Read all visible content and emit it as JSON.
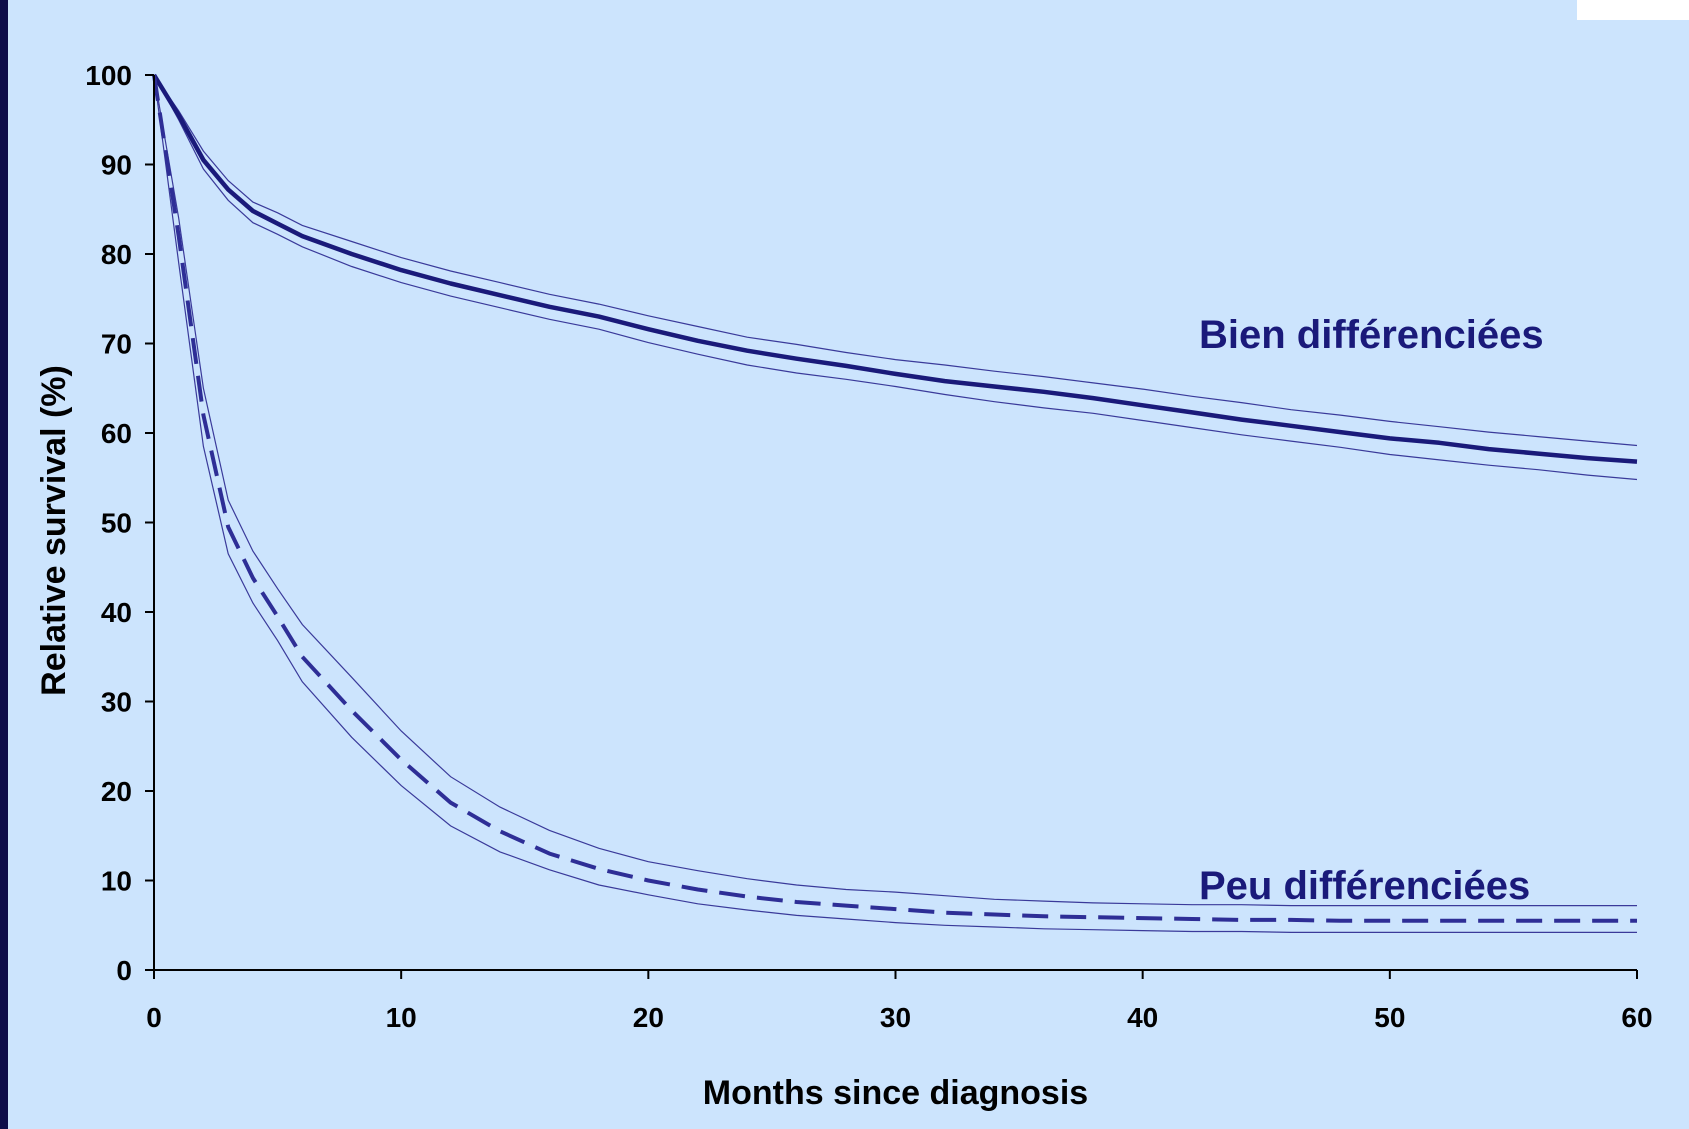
{
  "chart_data": {
    "type": "line",
    "xlabel": "Months since diagnosis",
    "ylabel": "Relative survival (%)",
    "xlim": [
      0,
      60
    ],
    "ylim": [
      0,
      100
    ],
    "xticks": [
      0,
      10,
      20,
      30,
      40,
      50,
      60
    ],
    "yticks": [
      0,
      10,
      20,
      30,
      40,
      50,
      60,
      70,
      80,
      90,
      100
    ],
    "grid": false,
    "colors": {
      "line": "#1a1a7a",
      "dashed": "#2e2e96",
      "ci": "#3a3a9a",
      "background": "#cce4fd"
    },
    "series": [
      {
        "name": "Bien différenciées",
        "style": "solid",
        "x": [
          0,
          1,
          2,
          3,
          4,
          5,
          6,
          8,
          10,
          12,
          14,
          16,
          18,
          20,
          22,
          24,
          26,
          28,
          30,
          32,
          34,
          36,
          38,
          40,
          42,
          44,
          46,
          48,
          50,
          52,
          54,
          56,
          58,
          60
        ],
        "y": [
          100,
          95.5,
          90.5,
          87.2,
          84.8,
          83.4,
          82,
          80,
          78.2,
          76.7,
          75.4,
          74.1,
          73,
          71.6,
          70.3,
          69.2,
          68.3,
          67.5,
          66.6,
          65.8,
          65.2,
          64.6,
          63.9,
          63.1,
          62.3,
          61.5,
          60.8,
          60.1,
          59.4,
          58.9,
          58.2,
          57.7,
          57.2,
          56.8
        ],
        "ci_upper": [
          100,
          96,
          91.5,
          88.2,
          85.8,
          84.6,
          83.2,
          81.4,
          79.6,
          78.1,
          76.8,
          75.5,
          74.4,
          73.1,
          71.9,
          70.7,
          69.9,
          69,
          68.2,
          67.6,
          66.9,
          66.3,
          65.6,
          64.9,
          64.1,
          63.4,
          62.6,
          62,
          61.3,
          60.7,
          60.1,
          59.6,
          59.1,
          58.6
        ],
        "ci_lower": [
          100,
          95,
          89.5,
          86,
          83.5,
          82.2,
          80.8,
          78.6,
          76.8,
          75.3,
          74,
          72.7,
          71.6,
          70.1,
          68.8,
          67.6,
          66.7,
          66,
          65.2,
          64.3,
          63.5,
          62.8,
          62.2,
          61.4,
          60.6,
          59.8,
          59.1,
          58.4,
          57.6,
          57,
          56.4,
          55.9,
          55.3,
          54.8
        ]
      },
      {
        "name": "Peu différenciées",
        "style": "dashed",
        "x": [
          0,
          1,
          2,
          3,
          4,
          5,
          6,
          8,
          10,
          12,
          14,
          16,
          18,
          20,
          22,
          24,
          26,
          28,
          30,
          32,
          34,
          36,
          38,
          40,
          42,
          44,
          46,
          48,
          50,
          52,
          54,
          56,
          58,
          60
        ],
        "y": [
          100,
          82,
          62,
          49.5,
          43.8,
          39.5,
          35,
          29,
          23.5,
          18.7,
          15.5,
          13,
          11.3,
          10,
          9,
          8.2,
          7.6,
          7.2,
          6.8,
          6.4,
          6.2,
          6,
          5.9,
          5.8,
          5.7,
          5.6,
          5.6,
          5.5,
          5.5,
          5.5,
          5.5,
          5.5,
          5.5,
          5.5
        ],
        "ci_upper": [
          100,
          84,
          65,
          52.5,
          46.8,
          42.6,
          38.6,
          32.7,
          26.7,
          21.6,
          18.2,
          15.6,
          13.6,
          12.1,
          11.1,
          10.2,
          9.5,
          9,
          8.7,
          8.3,
          7.9,
          7.7,
          7.5,
          7.4,
          7.3,
          7.3,
          7.2,
          7.2,
          7.2,
          7.2,
          7.2,
          7.2,
          7.2,
          7.2
        ],
        "ci_lower": [
          100,
          79,
          58.5,
          46.5,
          41,
          36.8,
          32.2,
          26,
          20.6,
          16.1,
          13.2,
          11.2,
          9.5,
          8.4,
          7.4,
          6.7,
          6.1,
          5.7,
          5.3,
          5,
          4.8,
          4.6,
          4.5,
          4.4,
          4.3,
          4.3,
          4.2,
          4.2,
          4.2,
          4.2,
          4.2,
          4.2,
          4.2,
          4.2
        ]
      }
    ]
  }
}
